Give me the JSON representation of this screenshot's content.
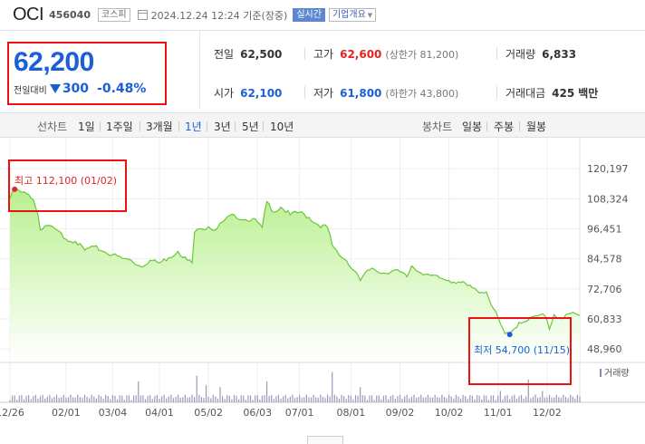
{
  "header": {
    "company_name": "OCI",
    "stock_code": "456040",
    "market": "코스피",
    "datetime": "2024.12.24 12:24 기준(장중)",
    "realtime_label": "실시간",
    "company_info_label": "기업개요"
  },
  "price": {
    "current": "62,200",
    "change_label": "전일대비",
    "change_value": "300",
    "change_rate": "-0.48%",
    "direction": "down"
  },
  "stats": {
    "prev_close_label": "전일",
    "prev_close": "62,500",
    "high_label": "고가",
    "high": "62,600",
    "upper_limit_label": "(상한가 81,200)",
    "volume_label": "거래량",
    "volume": "6,833",
    "open_label": "시가",
    "open": "62,100",
    "low_label": "저가",
    "low": "61,800",
    "lower_limit_label": "(하한가 43,800)",
    "amount_label": "거래대금",
    "amount": "425",
    "amount_unit": "백만"
  },
  "toolbar": {
    "line_label": "선차트",
    "periods": [
      "1일",
      "1주일",
      "3개월",
      "1년",
      "3년",
      "5년",
      "10년"
    ],
    "active_period": "1년",
    "candle_label": "봉차트",
    "candle_periods": [
      "일봉",
      "주봉",
      "월봉"
    ]
  },
  "colors": {
    "up": "#e62222",
    "down": "#1a5fd6",
    "line": "#6cc63a",
    "area_top": "#b9f08f",
    "highlight": "#ee1111"
  },
  "chart_data": {
    "type": "area",
    "ylim": [
      44000,
      126000
    ],
    "yticks": [
      120197,
      108324,
      96451,
      84578,
      72706,
      60833,
      48960
    ],
    "ytick_labels": [
      "120,197",
      "108,324",
      "96,451",
      "84,578",
      "72,706",
      "60,833",
      "48,960"
    ],
    "xtick_labels": [
      "12/26",
      "02/01",
      "03/04",
      "04/01",
      "05/02",
      "06/03",
      "07/01",
      "08/01",
      "09/02",
      "10/02",
      "11/01",
      "12/02"
    ],
    "xtick_index": [
      0,
      24,
      44,
      64,
      85,
      106,
      124,
      146,
      167,
      188,
      209,
      230
    ],
    "num_points": 245,
    "anchors": [
      [
        0,
        108500
      ],
      [
        2,
        112100
      ],
      [
        5,
        110800
      ],
      [
        8,
        110000
      ],
      [
        10,
        108000
      ],
      [
        12,
        102000
      ],
      [
        13,
        96000
      ],
      [
        16,
        97800
      ],
      [
        20,
        96000
      ],
      [
        24,
        92300
      ],
      [
        28,
        91500
      ],
      [
        32,
        88000
      ],
      [
        36,
        89500
      ],
      [
        40,
        87500
      ],
      [
        44,
        86200
      ],
      [
        48,
        84800
      ],
      [
        52,
        84000
      ],
      [
        56,
        81500
      ],
      [
        60,
        84000
      ],
      [
        64,
        83000
      ],
      [
        68,
        85000
      ],
      [
        72,
        87500
      ],
      [
        76,
        84000
      ],
      [
        78,
        83000
      ],
      [
        79,
        95000
      ],
      [
        82,
        96500
      ],
      [
        85,
        97300
      ],
      [
        88,
        96000
      ],
      [
        92,
        100000
      ],
      [
        96,
        102000
      ],
      [
        100,
        100000
      ],
      [
        104,
        100500
      ],
      [
        108,
        97000
      ],
      [
        110,
        107200
      ],
      [
        113,
        103000
      ],
      [
        116,
        105000
      ],
      [
        120,
        102000
      ],
      [
        124,
        103000
      ],
      [
        128,
        101000
      ],
      [
        132,
        98000
      ],
      [
        136,
        97000
      ],
      [
        138,
        90000
      ],
      [
        141,
        86000
      ],
      [
        144,
        84000
      ],
      [
        146,
        81000
      ],
      [
        148,
        79500
      ],
      [
        150,
        76000
      ],
      [
        152,
        79000
      ],
      [
        156,
        80500
      ],
      [
        160,
        79000
      ],
      [
        164,
        80000
      ],
      [
        167,
        79500
      ],
      [
        170,
        77500
      ],
      [
        172,
        81800
      ],
      [
        176,
        79000
      ],
      [
        180,
        78000
      ],
      [
        184,
        77000
      ],
      [
        188,
        76000
      ],
      [
        192,
        75500
      ],
      [
        196,
        74000
      ],
      [
        200,
        72000
      ],
      [
        204,
        71500
      ],
      [
        207,
        65000
      ],
      [
        210,
        59000
      ],
      [
        212,
        55000
      ],
      [
        214,
        54700
      ],
      [
        216,
        57000
      ],
      [
        218,
        59500
      ],
      [
        222,
        60500
      ],
      [
        226,
        62000
      ],
      [
        229,
        62200
      ],
      [
        231,
        56800
      ],
      [
        233,
        62500
      ],
      [
        236,
        61000
      ],
      [
        240,
        63000
      ],
      [
        244,
        62200
      ]
    ],
    "volume_spikes": [
      [
        55,
        0.55
      ],
      [
        80,
        0.7
      ],
      [
        84,
        0.45
      ],
      [
        90,
        0.4
      ],
      [
        110,
        0.55
      ],
      [
        138,
        0.8
      ],
      [
        150,
        0.4
      ],
      [
        210,
        0.3
      ],
      [
        222,
        0.6
      ],
      [
        228,
        0.3
      ]
    ],
    "high_marker": {
      "label": "최고 112,100 (01/02)",
      "index": 2,
      "value": 112100
    },
    "low_marker": {
      "label": "최저 54,700 (11/15)",
      "index": 214,
      "value": 54700
    },
    "volume_label": "거래량",
    "grid": true
  }
}
